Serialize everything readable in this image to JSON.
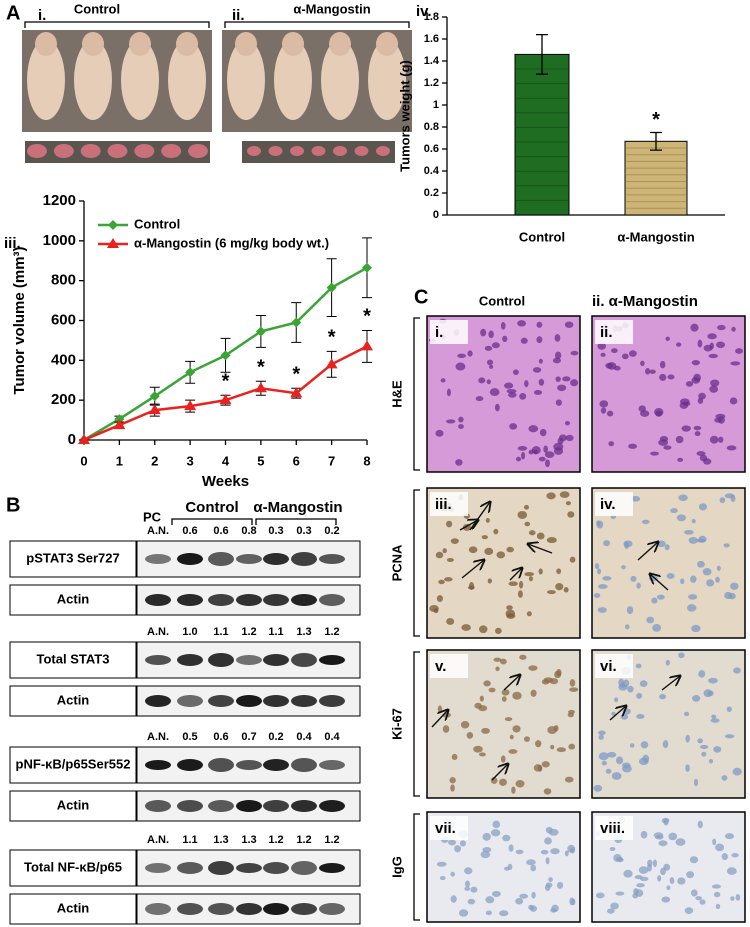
{
  "panel_a": {
    "label": "A",
    "groups": [
      {
        "label": "i.",
        "name": "Control"
      },
      {
        "label": "ii.",
        "name": "α-Mangostin"
      }
    ]
  },
  "chart_data": [
    {
      "type": "bar",
      "label": "iv.",
      "y_label": "Tumors weight (g)",
      "categories": [
        "Control",
        "α-Mangostin"
      ],
      "values": [
        1.46,
        0.67
      ],
      "errors": [
        0.18,
        0.08
      ],
      "value_annotations": [
        null,
        "*"
      ],
      "colors": [
        "#1f6d22",
        "#cdb577"
      ],
      "ylim": [
        0,
        1.8
      ],
      "yticks": [
        0,
        0.2,
        0.4,
        0.6,
        0.8,
        1,
        1.2,
        1.4,
        1.6,
        1.8
      ]
    },
    {
      "type": "line",
      "label": "iii.",
      "x_label": "Weeks",
      "y_label": "Tumor volume (mm³)",
      "x": [
        0,
        1,
        2,
        3,
        4,
        5,
        6,
        7,
        8
      ],
      "series": [
        {
          "name": "Control",
          "color": "#3aa535",
          "marker": "diamond",
          "values": [
            0,
            105,
            220,
            340,
            425,
            545,
            590,
            765,
            865
          ],
          "errors": [
            0,
            15,
            45,
            55,
            85,
            80,
            100,
            145,
            150
          ],
          "annotations": [
            null,
            null,
            null,
            null,
            null,
            null,
            null,
            null,
            null
          ]
        },
        {
          "name": "α-Mangostin (6 mg/kg body wt.)",
          "color": "#e8231f",
          "marker": "triangle",
          "values": [
            0,
            75,
            150,
            170,
            200,
            260,
            235,
            380,
            470
          ],
          "errors": [
            0,
            15,
            30,
            30,
            25,
            35,
            25,
            65,
            80
          ],
          "annotations": [
            null,
            null,
            null,
            null,
            "*",
            "*",
            "*",
            "*",
            "*"
          ]
        }
      ],
      "xlim": [
        0,
        8
      ],
      "xticks": [
        0,
        1,
        2,
        3,
        4,
        5,
        6,
        7,
        8
      ],
      "ylim": [
        0,
        1200
      ],
      "yticks": [
        0,
        200,
        400,
        600,
        800,
        1000,
        1200
      ]
    }
  ],
  "panel_b": {
    "label": "B",
    "pc": "PC",
    "groups": [
      "Control",
      "α-Mangostin"
    ],
    "blocks": [
      {
        "numbers": [
          "A.N.",
          "0.6",
          "0.6",
          "0.8",
          "0.3",
          "0.3",
          "0.2"
        ],
        "rows": [
          "pSTAT3 Ser727",
          "Actin"
        ]
      },
      {
        "numbers": [
          "A.N.",
          "1.0",
          "1.1",
          "1.2",
          "1.1",
          "1.3",
          "1.2"
        ],
        "rows": [
          "Total STAT3",
          "Actin"
        ]
      },
      {
        "numbers": [
          "A.N.",
          "0.5",
          "0.6",
          "0.7",
          "0.2",
          "0.4",
          "0.4"
        ],
        "rows": [
          "pNF-κB/p65Ser552",
          "Actin"
        ]
      },
      {
        "numbers": [
          "A.N.",
          "1.1",
          "1.3",
          "1.3",
          "1.2",
          "1.2",
          "1.2"
        ],
        "rows": [
          "Total NF-κB/p65",
          "Actin"
        ]
      }
    ]
  },
  "panel_c": {
    "label": "C",
    "columns": [
      "Control",
      "ii. α-Mangostin"
    ],
    "rows": [
      {
        "stain": "H&E",
        "images": [
          "i.",
          "ii."
        ]
      },
      {
        "stain": "PCNA",
        "images": [
          "iii.",
          "iv."
        ]
      },
      {
        "stain": "Ki-67",
        "images": [
          "v.",
          "vi."
        ]
      },
      {
        "stain": "IgG",
        "images": [
          "vii.",
          "viii."
        ]
      }
    ]
  }
}
